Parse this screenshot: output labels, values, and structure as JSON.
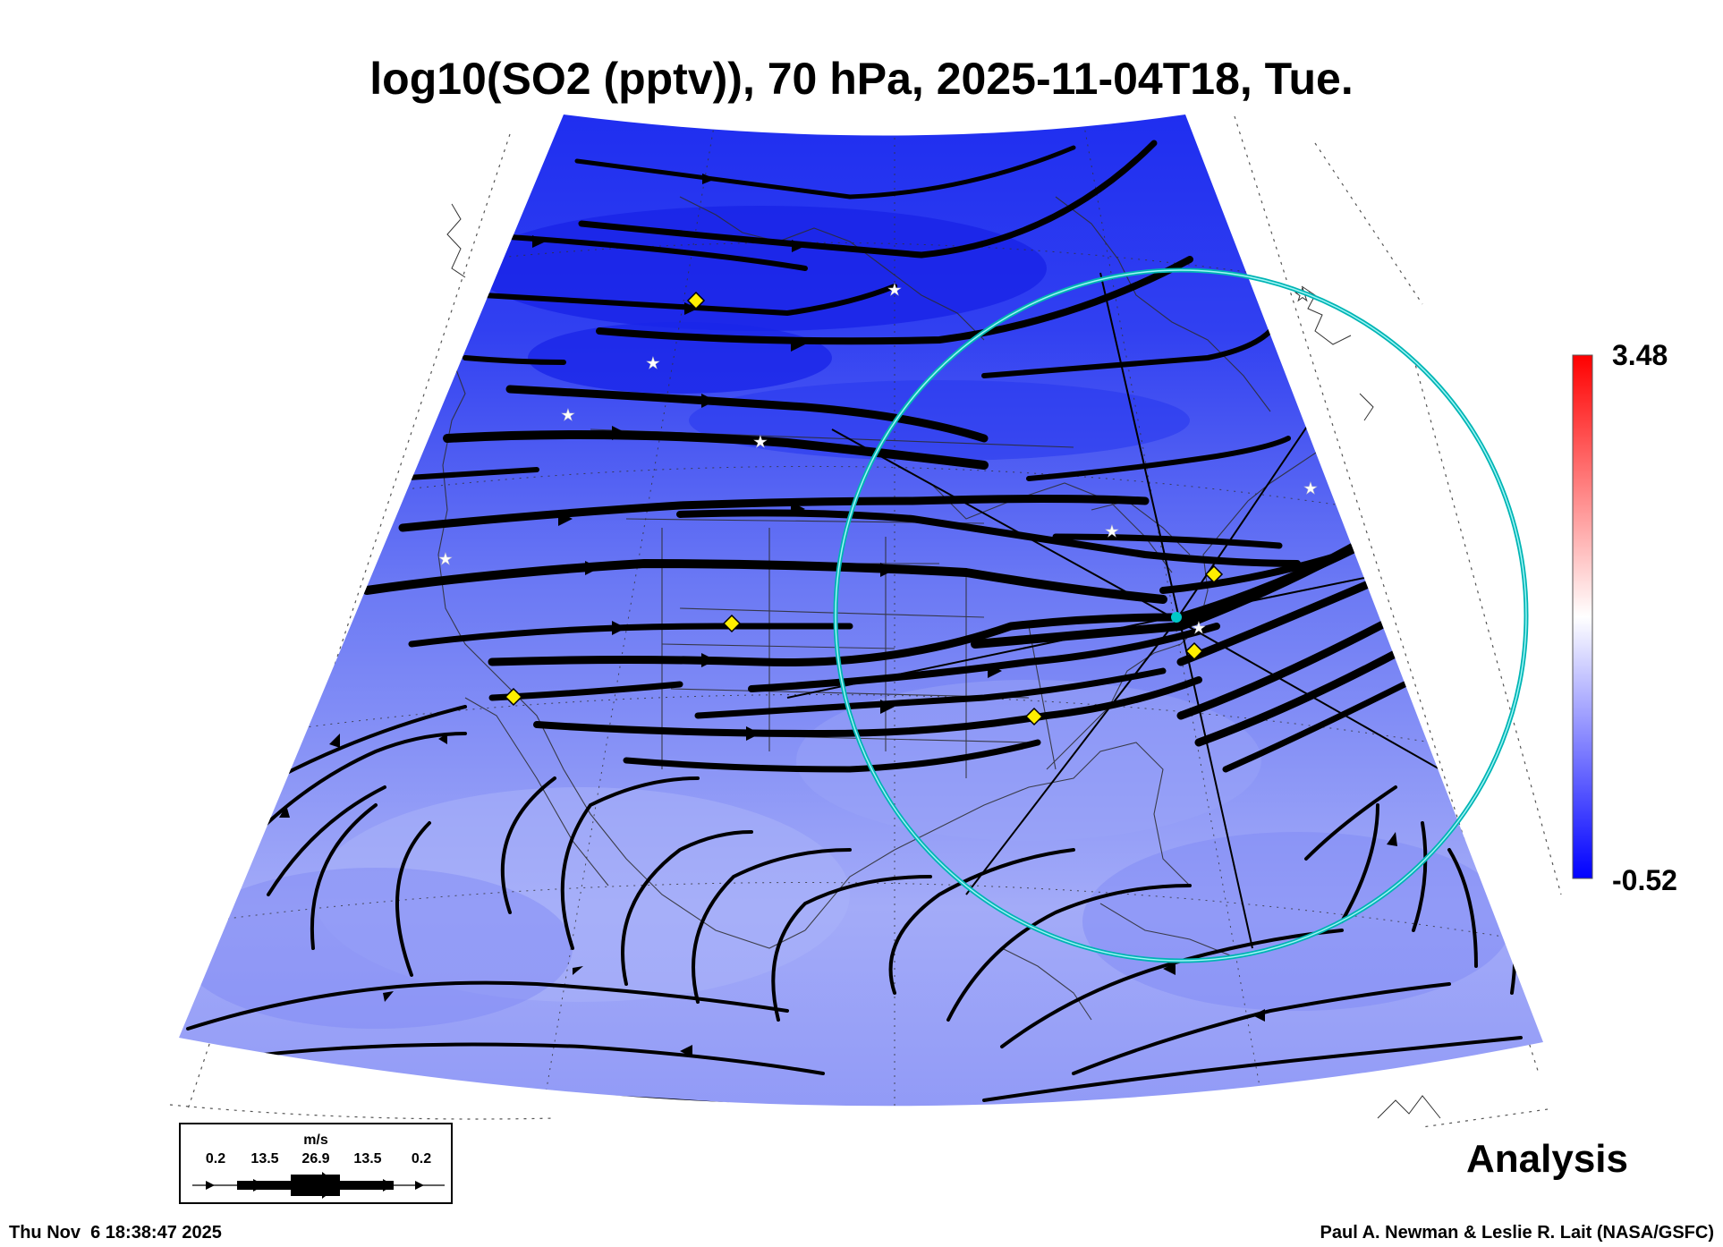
{
  "title": "log10(SO2 (pptv)), 70 hPa, 2025-11-04T18, Tue.",
  "colorbar": {
    "max_label": "3.48",
    "min_label": "-0.52",
    "max_value": 3.48,
    "min_value": -0.52,
    "colors": [
      "#0000ff",
      "#ffffff",
      "#ff0000"
    ]
  },
  "field_colors": {
    "dark": "#1d2cf0",
    "mid": "#6a78f4",
    "light": "#a3abf8"
  },
  "ring_color": "#00b4b4",
  "marker_color": "#ffee00",
  "analysis_label": "Analysis",
  "legend": {
    "unit": "m/s",
    "labels": [
      "0.2",
      "13.5",
      "26.9",
      "13.5",
      "0.2"
    ]
  },
  "footer": {
    "timestamp": "Thu Nov  6 18:38:47 2025",
    "credit": "Paul A. Newman & Leslie R. Lait (NASA/GSFC)"
  }
}
